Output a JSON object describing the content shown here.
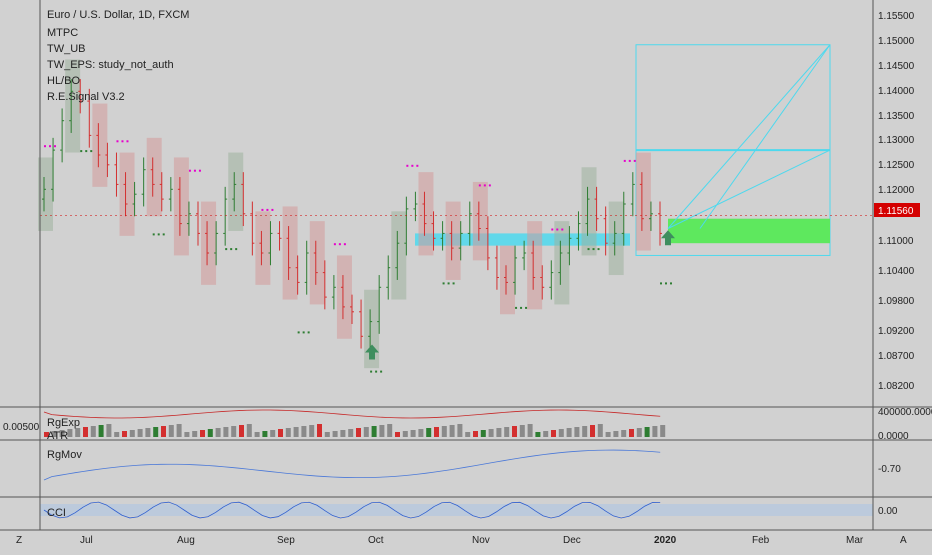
{
  "header": {
    "title": "Euro / U.S. Dollar, 1D, FXCM",
    "studies": [
      "MTPC",
      "TW_UB",
      "TW_EPS: study_not_auth",
      "HL/BO",
      "R.E.Signal V3.2"
    ]
  },
  "price_axis": {
    "ticks": [
      "1.15500",
      "1.15000",
      "1.14500",
      "1.14000",
      "1.13500",
      "1.13000",
      "1.12500",
      "1.12000",
      "1.11000",
      "1.10400",
      "1.09800",
      "1.09200",
      "1.08700",
      "1.08200"
    ],
    "last_price": "1.11560",
    "last_price_color": "#d40000"
  },
  "time_axis": {
    "labels": [
      "Jul",
      "Aug",
      "Sep",
      "Oct",
      "Nov",
      "Dec",
      "2020",
      "Feb",
      "Mar"
    ],
    "corner_left": "Z",
    "corner_right": "A"
  },
  "panes": {
    "volume": {
      "labels": [
        "RgExp",
        "ATR"
      ],
      "left_value": "0.00500",
      "axis_ticks": [
        "400000.0000",
        "0.0000"
      ]
    },
    "rgmov": {
      "label": "RgMov",
      "axis_ticks": [
        "-0.70"
      ]
    },
    "cci": {
      "label": "CCI",
      "axis_ticks": [
        "0.00"
      ]
    }
  },
  "colors": {
    "up": "#2e7d32",
    "down": "#d32f2f",
    "zone": "#4dd9ee",
    "target": "#5ee85e",
    "signal": "#3e8e5e",
    "marker": "#e600cc"
  },
  "chart_data": {
    "type": "candlestick",
    "title": "Euro / U.S. Dollar, 1D, FXCM",
    "ylim": [
      1.078,
      1.158
    ],
    "x_labels": [
      "Jul",
      "Aug",
      "Sep",
      "Oct",
      "Nov",
      "Dec",
      "2020",
      "Feb",
      "Mar"
    ],
    "closes": [
      1.121,
      1.129,
      1.135,
      1.141,
      1.139,
      1.132,
      1.128,
      1.126,
      1.122,
      1.118,
      1.12,
      1.125,
      1.122,
      1.119,
      1.121,
      1.114,
      1.116,
      1.112,
      1.108,
      1.112,
      1.119,
      1.122,
      1.116,
      1.11,
      1.108,
      1.112,
      1.111,
      1.105,
      1.102,
      1.108,
      1.104,
      1.099,
      1.101,
      1.097,
      1.096,
      1.091,
      1.094,
      1.101,
      1.105,
      1.11,
      1.117,
      1.118,
      1.114,
      1.111,
      1.112,
      1.109,
      1.112,
      1.116,
      1.113,
      1.107,
      1.103,
      1.102,
      1.107,
      1.108,
      1.103,
      1.101,
      1.104,
      1.108,
      1.111,
      1.114,
      1.119,
      1.115,
      1.11,
      1.112,
      1.118,
      1.122,
      1.115,
      1.116,
      1.112
    ],
    "last_price": 1.1156,
    "zones": [
      {
        "name": "resistance-support",
        "from": 1.1095,
        "to": 1.112
      },
      {
        "name": "target",
        "from": 1.11,
        "to": 1.115
      },
      {
        "name": "projection-top",
        "value": 1.1505
      },
      {
        "name": "projection-mid",
        "value": 1.129
      }
    ]
  }
}
